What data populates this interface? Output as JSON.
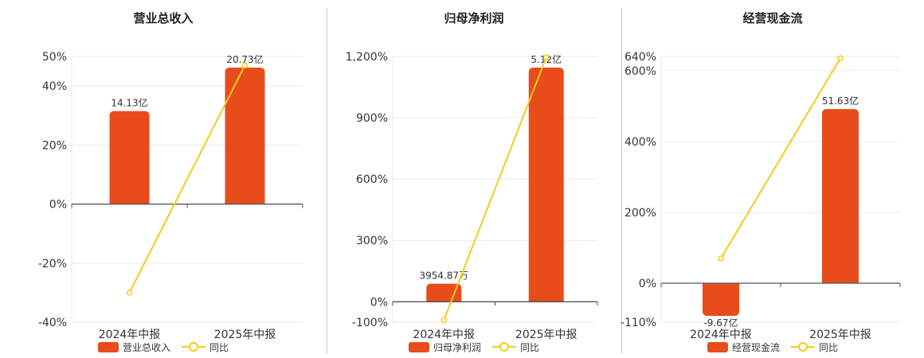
{
  "colors": {
    "bar": "#e84c1b",
    "line": "#f2cd1b",
    "grid": "#e6e9f0",
    "axis": "#555555"
  },
  "chart_data": [
    {
      "type": "bar",
      "title": "营业总收入",
      "categories": [
        "2024年中报",
        "2025年中报"
      ],
      "series": [
        {
          "name": "营业总收入",
          "type": "bar",
          "unit": "亿",
          "values": [
            14.13,
            20.73
          ],
          "labels": [
            "14.13亿",
            "20.73亿"
          ]
        },
        {
          "name": "同比",
          "type": "line",
          "unit": "%",
          "values": [
            -30,
            47
          ]
        }
      ],
      "y_ticks": [
        "50%",
        "40%",
        "20%",
        "0%",
        "-20%",
        "-40%"
      ],
      "y_tick_values": [
        50,
        40,
        20,
        0,
        -20,
        -40
      ],
      "ylim": [
        -40,
        50
      ],
      "grid": true,
      "legend": "bottom"
    },
    {
      "type": "bar",
      "title": "归母净利润",
      "categories": [
        "2024年中报",
        "2025年中报"
      ],
      "series": [
        {
          "name": "归母净利润",
          "type": "bar",
          "unit": "亿",
          "values": [
            0.395487,
            5.12
          ],
          "labels": [
            "3954.87万",
            "5.12亿"
          ]
        },
        {
          "name": "同比",
          "type": "line",
          "unit": "%",
          "values": [
            -90,
            1195
          ]
        }
      ],
      "y_ticks": [
        "1,200%",
        "900%",
        "600%",
        "300%",
        "0%",
        "-100%"
      ],
      "y_tick_values": [
        1200,
        900,
        600,
        300,
        0,
        -100
      ],
      "ylim": [
        -100,
        1200
      ],
      "grid": true,
      "legend": "bottom"
    },
    {
      "type": "bar",
      "title": "经营现金流",
      "categories": [
        "2024年中报",
        "2025年中报"
      ],
      "series": [
        {
          "name": "经营现金流",
          "type": "bar",
          "unit": "亿",
          "values": [
            -9.67,
            51.63
          ],
          "labels": [
            "-9.67亿",
            "51.63亿"
          ]
        },
        {
          "name": "同比",
          "type": "line",
          "unit": "%",
          "values": [
            70,
            635
          ]
        }
      ],
      "y_ticks": [
        "640%",
        "600%",
        "400%",
        "200%",
        "0%",
        "-110%"
      ],
      "y_tick_values": [
        640,
        600,
        400,
        200,
        0,
        -110
      ],
      "ylim": [
        -110,
        640
      ],
      "grid": true,
      "legend": "bottom"
    }
  ]
}
